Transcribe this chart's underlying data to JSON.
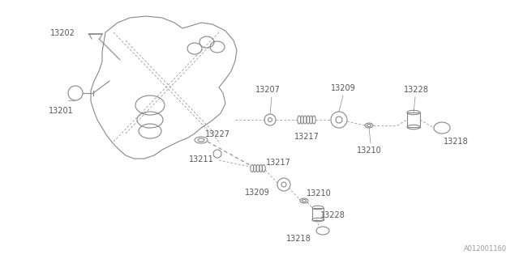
{
  "bg_color": "#ffffff",
  "line_color": "#888888",
  "text_color": "#555555",
  "watermark": "A012001160",
  "fig_w": 6.4,
  "fig_h": 3.2,
  "dpi": 100
}
